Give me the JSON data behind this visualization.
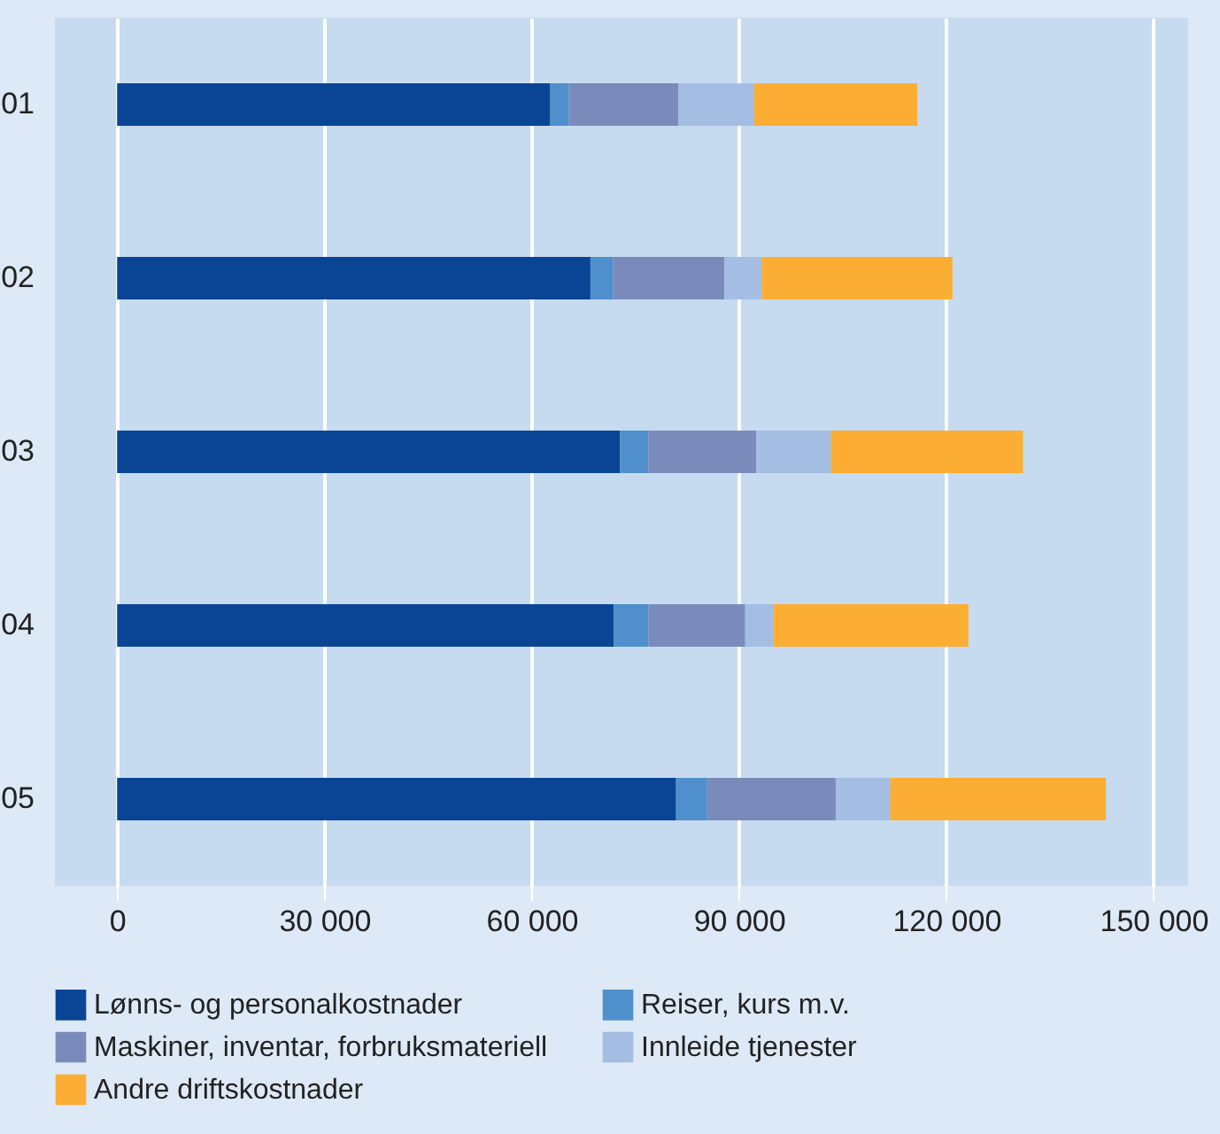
{
  "chart_data": {
    "type": "bar",
    "orientation": "horizontal",
    "stacked": true,
    "categories": [
      "01",
      "02",
      "03",
      "04",
      "05"
    ],
    "series": [
      {
        "name": "Lønns- og personalkostnader",
        "color": "#0a4595",
        "values": [
          62700,
          68500,
          72800,
          71900,
          80900
        ]
      },
      {
        "name": "Reiser, kurs m.v.",
        "color": "#4f90cc",
        "values": [
          2700,
          3300,
          4100,
          5000,
          4500
        ]
      },
      {
        "name": "Maskiner, inventar, forbruksmateriell",
        "color": "#7a8bbb",
        "values": [
          15800,
          16100,
          15600,
          14000,
          18600
        ]
      },
      {
        "name": "Innleide tjenester",
        "color": "#a4bde3",
        "values": [
          11000,
          5400,
          10800,
          4100,
          7900
        ]
      },
      {
        "name": "Andre driftskostnader",
        "color": "#fbae33",
        "values": [
          23600,
          27600,
          27800,
          28200,
          31200
        ]
      }
    ],
    "xlim": [
      -9000,
      155000
    ],
    "xticks": [
      {
        "value": 0,
        "label": "0"
      },
      {
        "value": 30000,
        "label": "30 000"
      },
      {
        "value": 60000,
        "label": "60 000"
      },
      {
        "value": 90000,
        "label": "90 000"
      },
      {
        "value": 120000,
        "label": "120 000"
      },
      {
        "value": 150000,
        "label": "150 000"
      }
    ],
    "grid": "x",
    "legend": "bottom"
  }
}
